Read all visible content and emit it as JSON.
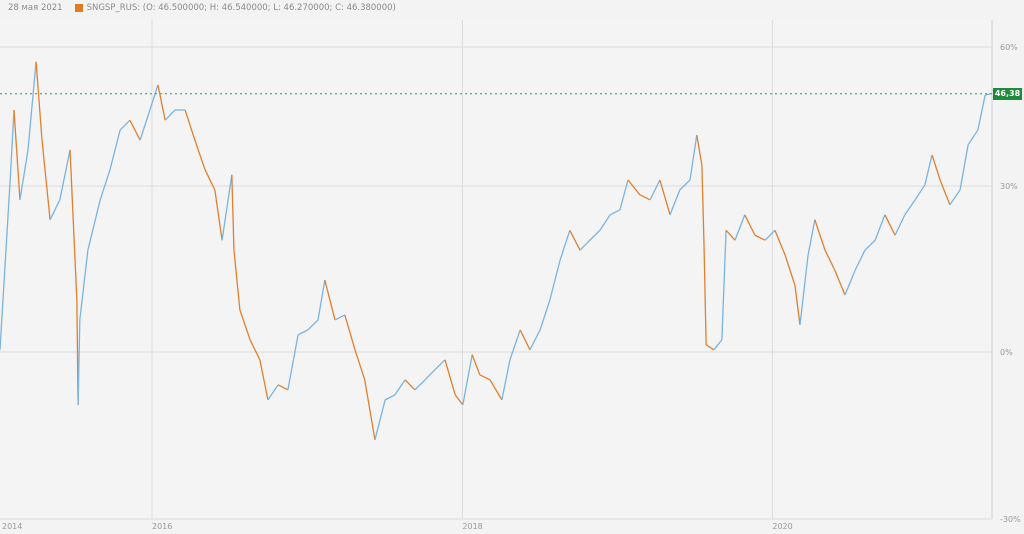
{
  "header": {
    "date": "28 мая 2021",
    "legend": "SNGSP_RUS: (O: 46.500000; H: 46.540000; L: 46.270000; C: 46.380000)"
  },
  "price_label": "46,38",
  "colors": {
    "up": "#7ab4e0",
    "down": "#e0802c",
    "legend": "#e07b24",
    "price_tag": "#1e8a3c",
    "grid": "#dcdcdc"
  },
  "chart_data": {
    "type": "line",
    "title": "",
    "xlabel": "",
    "ylabel": "",
    "y_unit": "%",
    "ylim": [
      -30,
      60
    ],
    "x_ticks": [
      {
        "date": "2014-01-01",
        "label": "2014"
      },
      {
        "date": "2016-01-01",
        "label": "2016"
      },
      {
        "date": "2018-01-01",
        "label": "2018"
      },
      {
        "date": "2020-01-01",
        "label": "2020"
      }
    ],
    "y_ticks": [
      {
        "value": 60,
        "label": "60%"
      },
      {
        "value": 30,
        "label": "30%"
      },
      {
        "value": 0,
        "label": "0%"
      },
      {
        "value": -30,
        "label": "-30%"
      }
    ],
    "grid": true,
    "last_value_line": 49.9,
    "series": [
      {
        "points": [
          [
            "2015-01-08",
            0.4
          ],
          [
            "2015-02-01",
            31.3
          ],
          [
            "2015-02-10",
            46.4
          ],
          [
            "2015-02-24",
            27.5
          ],
          [
            "2015-03-15",
            37.8
          ],
          [
            "2015-04-03",
            56.8
          ],
          [
            "2015-04-17",
            39.9
          ],
          [
            "2015-05-06",
            23.9
          ],
          [
            "2015-05-29",
            27.5
          ],
          [
            "2015-06-22",
            37.8
          ],
          [
            "2015-07-08",
            9.4
          ],
          [
            "2015-07-11",
            -9.5
          ],
          [
            "2015-07-15",
            5.8
          ],
          [
            "2015-08-03",
            18.4
          ],
          [
            "2015-09-01",
            27.5
          ],
          [
            "2015-09-24",
            33.5
          ],
          [
            "2015-10-18",
            42.1
          ],
          [
            "2015-11-10",
            44.2
          ],
          [
            "2015-12-04",
            39.9
          ],
          [
            "2015-12-27",
            46.4
          ],
          [
            "2016-01-15",
            51.8
          ],
          [
            "2016-02-01",
            44.2
          ],
          [
            "2016-02-24",
            46.4
          ],
          [
            "2016-03-19",
            46.4
          ],
          [
            "2016-04-11",
            39.9
          ],
          [
            "2016-05-05",
            33.5
          ],
          [
            "2016-05-28",
            29.3
          ],
          [
            "2016-06-14",
            20.2
          ],
          [
            "2016-07-07",
            32.4
          ],
          [
            "2016-07-12",
            18.4
          ],
          [
            "2016-07-26",
            7.6
          ],
          [
            "2016-08-19",
            2.2
          ],
          [
            "2016-09-11",
            -1.4
          ],
          [
            "2016-09-30",
            -8.6
          ],
          [
            "2016-10-24",
            -5.9
          ],
          [
            "2016-11-16",
            -6.8
          ],
          [
            "2016-12-10",
            3.1
          ],
          [
            "2017-01-02",
            4.0
          ],
          [
            "2017-01-26",
            5.8
          ],
          [
            "2017-02-11",
            13.0
          ],
          [
            "2017-03-07",
            5.8
          ],
          [
            "2017-03-30",
            6.7
          ],
          [
            "2017-04-23",
            0.4
          ],
          [
            "2017-05-16",
            -5.0
          ],
          [
            "2017-06-09",
            -15.8
          ],
          [
            "2017-07-03",
            -8.6
          ],
          [
            "2017-07-26",
            -7.7
          ],
          [
            "2017-08-19",
            -5.0
          ],
          [
            "2017-09-11",
            -6.8
          ],
          [
            "2017-10-05",
            -5.0
          ],
          [
            "2017-10-28",
            -3.2
          ],
          [
            "2017-11-21",
            -1.4
          ],
          [
            "2017-12-15",
            -7.7
          ],
          [
            "2018-01-02",
            -9.5
          ],
          [
            "2018-01-24",
            -0.5
          ],
          [
            "2018-02-11",
            -4.1
          ],
          [
            "2018-03-07",
            -5.0
          ],
          [
            "2018-04-04",
            -8.6
          ],
          [
            "2018-04-23",
            -1.4
          ],
          [
            "2018-05-17",
            4.0
          ],
          [
            "2018-06-09",
            0.4
          ],
          [
            "2018-07-03",
            4.0
          ],
          [
            "2018-07-26",
            9.4
          ],
          [
            "2018-08-19",
            16.6
          ],
          [
            "2018-09-11",
            22.0
          ],
          [
            "2018-10-05",
            18.4
          ],
          [
            "2018-10-28",
            20.2
          ],
          [
            "2018-11-21",
            22.0
          ],
          [
            "2018-12-15",
            24.8
          ],
          [
            "2019-01-07",
            25.7
          ],
          [
            "2019-01-26",
            31.3
          ],
          [
            "2019-02-23",
            28.4
          ],
          [
            "2019-03-19",
            27.5
          ],
          [
            "2019-04-11",
            31.3
          ],
          [
            "2019-05-05",
            24.8
          ],
          [
            "2019-05-28",
            29.3
          ],
          [
            "2019-06-21",
            31.3
          ],
          [
            "2019-07-07",
            41.0
          ],
          [
            "2019-07-19",
            34.5
          ],
          [
            "2019-07-24",
            19.3
          ],
          [
            "2019-07-29",
            1.3
          ],
          [
            "2019-08-16",
            0.4
          ],
          [
            "2019-09-04",
            2.2
          ],
          [
            "2019-09-14",
            22.0
          ],
          [
            "2019-10-05",
            20.2
          ],
          [
            "2019-10-28",
            24.8
          ],
          [
            "2019-11-21",
            21.1
          ],
          [
            "2019-12-15",
            20.2
          ],
          [
            "2020-01-07",
            22.0
          ],
          [
            "2020-01-31",
            17.5
          ],
          [
            "2020-02-23",
            12.1
          ],
          [
            "2020-03-06",
            4.9
          ],
          [
            "2020-03-25",
            17.5
          ],
          [
            "2020-04-10",
            23.9
          ],
          [
            "2020-05-04",
            18.4
          ],
          [
            "2020-05-27",
            14.8
          ],
          [
            "2020-06-20",
            10.3
          ],
          [
            "2020-07-14",
            14.8
          ],
          [
            "2020-08-06",
            18.4
          ],
          [
            "2020-08-30",
            20.2
          ],
          [
            "2020-09-22",
            24.8
          ],
          [
            "2020-10-16",
            21.1
          ],
          [
            "2020-11-08",
            24.8
          ],
          [
            "2020-12-02",
            27.5
          ],
          [
            "2020-12-25",
            30.2
          ],
          [
            "2021-01-11",
            36.7
          ],
          [
            "2021-01-30",
            31.3
          ],
          [
            "2021-02-22",
            26.6
          ],
          [
            "2021-03-18",
            29.3
          ],
          [
            "2021-04-06",
            38.9
          ],
          [
            "2021-04-29",
            42.1
          ],
          [
            "2021-05-16",
            49.6
          ],
          [
            "2021-05-28",
            49.9
          ]
        ]
      }
    ]
  }
}
